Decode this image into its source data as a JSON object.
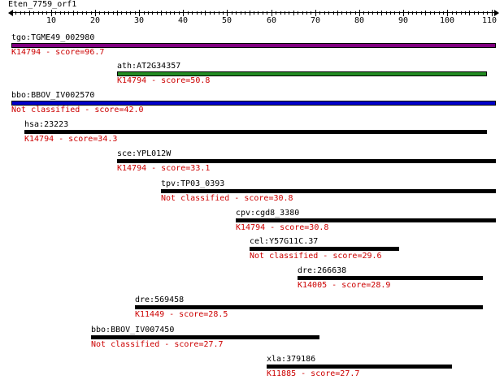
{
  "query": {
    "title": "Eten_7759_orf1",
    "length": 110,
    "ticks": [
      "10",
      "20",
      "30",
      "40",
      "50",
      "60",
      "70",
      "80",
      "90",
      "100",
      "110"
    ]
  },
  "colors": {
    "default_bar": "#000000",
    "score_text": "#cc0000"
  },
  "hits": [
    {
      "name": "tgo:TGME49_002980",
      "label": "K14794 - score=96.7",
      "start": 1,
      "end": 110,
      "color": "#800080"
    },
    {
      "name": "ath:AT2G34357",
      "label": "K14794 - score=50.8",
      "start": 25,
      "end": 108,
      "color": "#228b22"
    },
    {
      "name": "bbo:BBOV_IV002570",
      "label": "Not classified - score=42.0",
      "start": 1,
      "end": 110,
      "color": "#0000cc"
    },
    {
      "name": "hsa:23223",
      "label": "K14794 - score=34.3",
      "start": 4,
      "end": 108,
      "color": "#000000"
    },
    {
      "name": "sce:YPL012W",
      "label": "K14794 - score=33.1",
      "start": 25,
      "end": 110,
      "color": "#000000"
    },
    {
      "name": "tpv:TP03_0393",
      "label": "Not classified - score=30.8",
      "start": 35,
      "end": 110,
      "color": "#000000"
    },
    {
      "name": "cpv:cgd8_3380",
      "label": "K14794 - score=30.8",
      "start": 52,
      "end": 110,
      "color": "#000000"
    },
    {
      "name": "cel:Y57G11C.37",
      "label": "Not classified - score=29.6",
      "start": 55,
      "end": 88,
      "color": "#000000"
    },
    {
      "name": "dre:266638",
      "label": "K14005 - score=28.9",
      "start": 66,
      "end": 107,
      "color": "#000000"
    },
    {
      "name": "dre:569458",
      "label": "K11449 - score=28.5",
      "start": 29,
      "end": 107,
      "color": "#000000"
    },
    {
      "name": "bbo:BBOV_IV007450",
      "label": "Not classified - score=27.7",
      "start": 19,
      "end": 70,
      "color": "#000000"
    },
    {
      "name": "xla:379186",
      "label": "K11885 - score=27.7",
      "start": 59,
      "end": 100,
      "color": "#000000"
    }
  ]
}
